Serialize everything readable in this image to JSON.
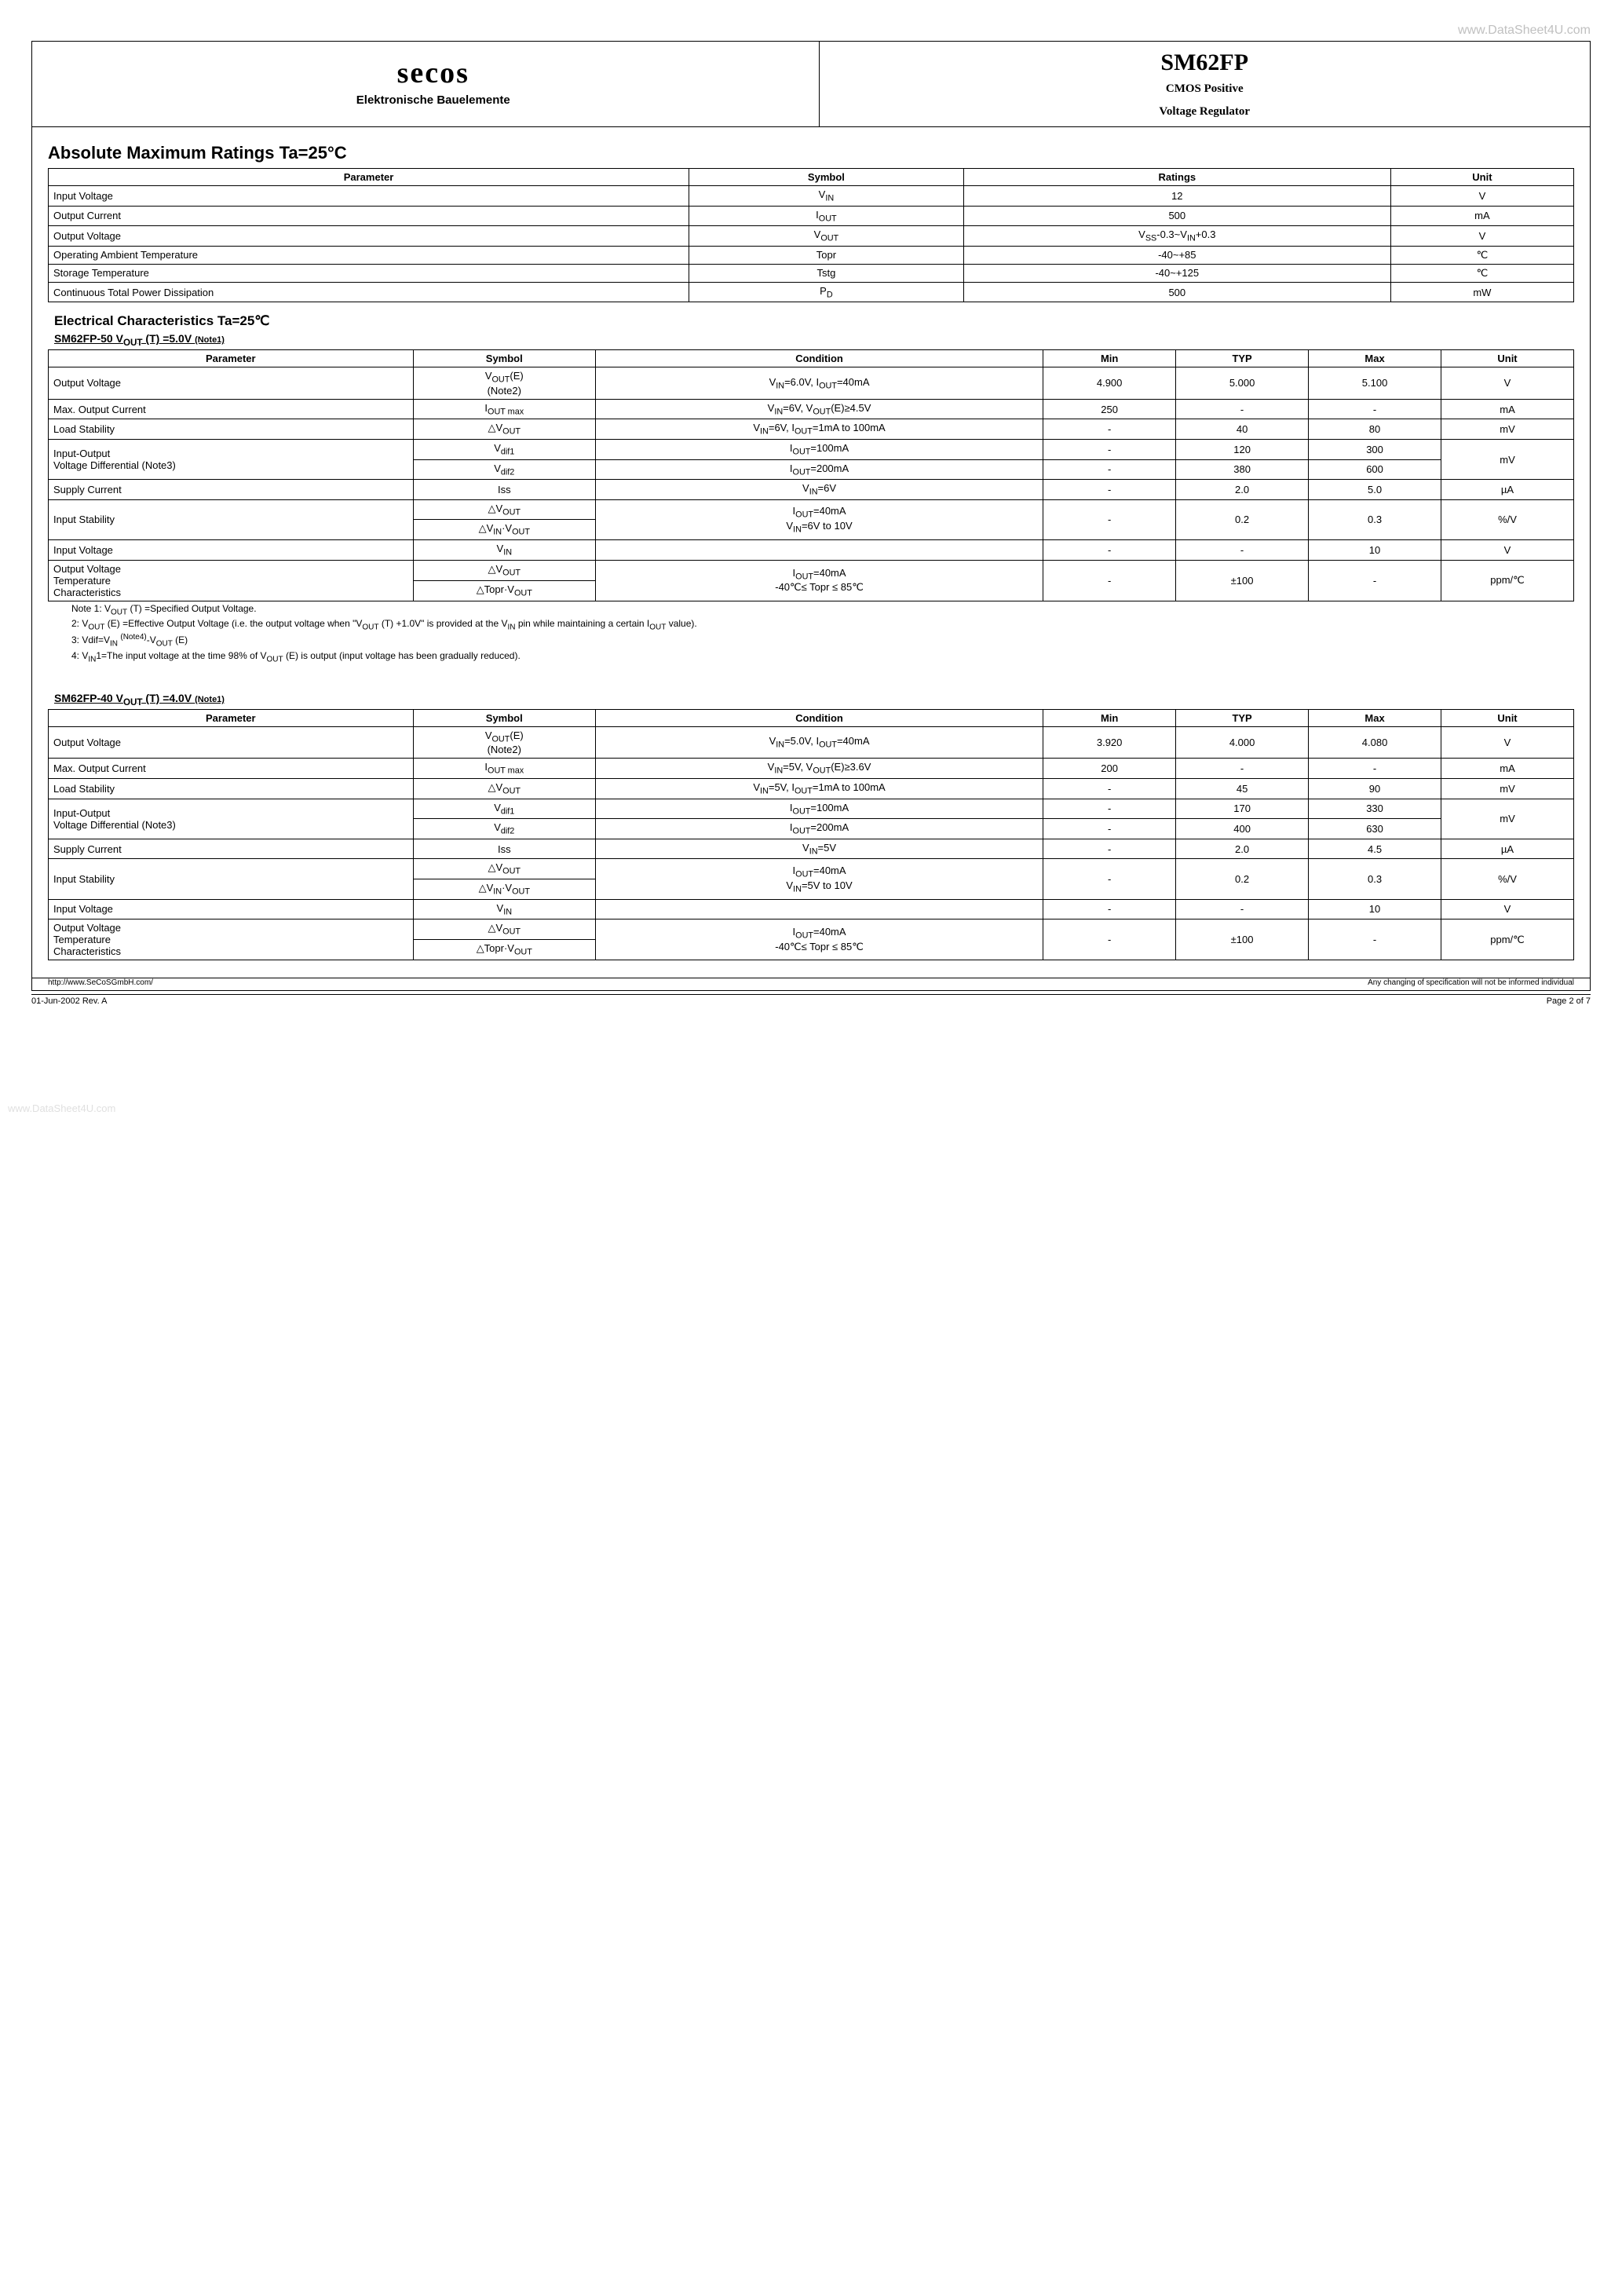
{
  "watermark_top": "www.DataSheet4U.com",
  "watermark_side": "www.DataSheet4U.com",
  "header": {
    "logo_text": "secos",
    "logo_sub": "Elektronische Bauelemente",
    "part_no": "SM62FP",
    "sub1": "CMOS Positive",
    "sub2": "Voltage Regulator"
  },
  "amr": {
    "title": "Absolute Maximum Ratings   Ta=25°C",
    "columns": [
      "Parameter",
      "Symbol",
      "Ratings",
      "Unit"
    ],
    "rows": [
      [
        "Input Voltage",
        "V<sub>IN</sub>",
        "12",
        "V"
      ],
      [
        "Output Current",
        "I<sub>OUT</sub>",
        "500",
        "mA"
      ],
      [
        "Output Voltage",
        "V<sub>OUT</sub>",
        "V<sub>SS</sub>-0.3~V<sub>IN</sub>+0.3",
        "V"
      ],
      [
        "Operating Ambient Temperature",
        "Topr",
        "-40~+85",
        "℃"
      ],
      [
        "Storage Temperature",
        "Tstg",
        "-40~+125",
        "℃"
      ],
      [
        "Continuous Total Power Dissipation",
        "P<sub>D</sub>",
        "500",
        "mW"
      ]
    ]
  },
  "ec": {
    "title": "Electrical Characteristics Ta=25℃",
    "columns": [
      "Parameter",
      "Symbol",
      "Condition",
      "Min",
      "TYP",
      "Max",
      "Unit"
    ],
    "variants": [
      {
        "name": "SM62FP-50 V<sub>OUT</sub> (T) =5.0V",
        "note": "(Note1)",
        "rows": [
          {
            "param": "Output Voltage",
            "symbol": "V<sub>OUT</sub>(E)<br>(Note2)",
            "cond": "V<sub>IN</sub>=6.0V, I<sub>OUT</sub>=40mA",
            "min": "4.900",
            "typ": "5.000",
            "max": "5.100",
            "unit": "V"
          },
          {
            "param": "Max. Output Current",
            "symbol": "I<sub>OUT max</sub>",
            "cond": "V<sub>IN</sub>=6V, V<sub>OUT</sub>(E)≥4.5V",
            "min": "250",
            "typ": "-",
            "max": "-",
            "unit": "mA"
          },
          {
            "param": "Load Stability",
            "symbol": "△V<sub>OUT</sub>",
            "cond": "V<sub>IN</sub>=6V, I<sub>OUT</sub>=1mA to 100mA",
            "min": "-",
            "typ": "40",
            "max": "80",
            "unit": "mV"
          },
          {
            "param": "Input-Output<br>Voltage Differential (Note3)",
            "symbol": "V<sub>dif1</sub>",
            "cond": "I<sub>OUT</sub>=100mA",
            "min": "-",
            "typ": "120",
            "max": "300",
            "unit": "mV",
            "rowspan_param": 2,
            "rowspan_unit": 2
          },
          {
            "param": "",
            "symbol": "V<sub>dif2</sub>",
            "cond": "I<sub>OUT</sub>=200mA",
            "min": "-",
            "typ": "380",
            "max": "600",
            "unit": ""
          },
          {
            "param": "Supply Current",
            "symbol": "Iss",
            "cond": "V<sub>IN</sub>=6V",
            "min": "-",
            "typ": "2.0",
            "max": "5.0",
            "unit": "µA"
          },
          {
            "param": "Input Stability",
            "symbol": "△V<sub>OUT</sub>",
            "cond": "I<sub>OUT</sub>=40mA<br>V<sub>IN</sub>=6V to 10V",
            "min": "-",
            "typ": "0.2",
            "max": "0.3",
            "unit": "%/V",
            "rowspan_param": 2,
            "rowspan_cond": 2,
            "rowspan_min": 2,
            "rowspan_typ": 2,
            "rowspan_max": 2,
            "rowspan_unit": 2
          },
          {
            "param": "",
            "symbol": "△V<sub>IN</sub>·V<sub>OUT</sub>",
            "cond": "",
            "min": "",
            "typ": "",
            "max": "",
            "unit": ""
          },
          {
            "param": "Input Voltage",
            "symbol": "V<sub>IN</sub>",
            "cond": "",
            "min": "-",
            "typ": "-",
            "max": "10",
            "unit": "V"
          },
          {
            "param": "Output Voltage<br>Temperature<br>Characteristics",
            "symbol": "△V<sub>OUT</sub>",
            "cond": "I<sub>OUT</sub>=40mA<br>-40℃≤ Topr ≤ 85℃",
            "min": "-",
            "typ": "±100",
            "max": "-",
            "unit": "ppm/℃",
            "rowspan_param": 2,
            "rowspan_cond": 2,
            "rowspan_min": 2,
            "rowspan_typ": 2,
            "rowspan_max": 2,
            "rowspan_unit": 2
          },
          {
            "param": "",
            "symbol": "△Topr·V<sub>OUT</sub>",
            "cond": "",
            "min": "",
            "typ": "",
            "max": "",
            "unit": ""
          }
        ]
      },
      {
        "name": "SM62FP-40 V<sub>OUT</sub> (T) =4.0V",
        "note": "(Note1)",
        "rows": [
          {
            "param": "Output Voltage",
            "symbol": "V<sub>OUT</sub>(E)<br>(Note2)",
            "cond": "V<sub>IN</sub>=5.0V, I<sub>OUT</sub>=40mA",
            "min": "3.920",
            "typ": "4.000",
            "max": "4.080",
            "unit": "V"
          },
          {
            "param": "Max. Output Current",
            "symbol": "I<sub>OUT max</sub>",
            "cond": "V<sub>IN</sub>=5V, V<sub>OUT</sub>(E)≥3.6V",
            "min": "200",
            "typ": "-",
            "max": "-",
            "unit": "mA"
          },
          {
            "param": "Load Stability",
            "symbol": "△V<sub>OUT</sub>",
            "cond": "V<sub>IN</sub>=5V, I<sub>OUT</sub>=1mA to 100mA",
            "min": "-",
            "typ": "45",
            "max": "90",
            "unit": "mV"
          },
          {
            "param": "Input-Output<br>Voltage Differential (Note3)",
            "symbol": "V<sub>dif1</sub>",
            "cond": "I<sub>OUT</sub>=100mA",
            "min": "-",
            "typ": "170",
            "max": "330",
            "unit": "mV",
            "rowspan_param": 2,
            "rowspan_unit": 2
          },
          {
            "param": "",
            "symbol": "V<sub>dif2</sub>",
            "cond": "I<sub>OUT</sub>=200mA",
            "min": "-",
            "typ": "400",
            "max": "630",
            "unit": ""
          },
          {
            "param": "Supply Current",
            "symbol": "Iss",
            "cond": "V<sub>IN</sub>=5V",
            "min": "-",
            "typ": "2.0",
            "max": "4.5",
            "unit": "µA"
          },
          {
            "param": "Input Stability",
            "symbol": "△V<sub>OUT</sub>",
            "cond": "I<sub>OUT</sub>=40mA<br>V<sub>IN</sub>=5V to 10V",
            "min": "-",
            "typ": "0.2",
            "max": "0.3",
            "unit": "%/V",
            "rowspan_param": 2,
            "rowspan_cond": 2,
            "rowspan_min": 2,
            "rowspan_typ": 2,
            "rowspan_max": 2,
            "rowspan_unit": 2
          },
          {
            "param": "",
            "symbol": "△V<sub>IN</sub>·V<sub>OUT</sub>",
            "cond": "",
            "min": "",
            "typ": "",
            "max": "",
            "unit": ""
          },
          {
            "param": "Input Voltage",
            "symbol": "V<sub>IN</sub>",
            "cond": "",
            "min": "-",
            "typ": "-",
            "max": "10",
            "unit": "V"
          },
          {
            "param": "Output Voltage<br>Temperature<br>Characteristics",
            "symbol": "△V<sub>OUT</sub>",
            "cond": "I<sub>OUT</sub>=40mA<br>-40℃≤ Topr ≤ 85℃",
            "min": "-",
            "typ": "±100",
            "max": "-",
            "unit": "ppm/℃",
            "rowspan_param": 2,
            "rowspan_cond": 2,
            "rowspan_min": 2,
            "rowspan_typ": 2,
            "rowspan_max": 2,
            "rowspan_unit": 2
          },
          {
            "param": "",
            "symbol": "△Topr·V<sub>OUT</sub>",
            "cond": "",
            "min": "",
            "typ": "",
            "max": "",
            "unit": ""
          }
        ]
      }
    ]
  },
  "notes": [
    "Note 1: V<sub>OUT</sub> (T) =Specified Output Voltage.",
    "2: V<sub>OUT</sub> (E) =Effective Output Voltage (i.e. the output voltage when \"V<sub>OUT</sub> (T) +1.0V\" is provided at the V<sub>IN</sub> pin while maintaining a certain I<sub>OUT</sub> value).",
    "3: Vdif=V<sub>IN</sub> <sup>(Note4)</sup>-V<sub>OUT</sub> (E)",
    "4: V<sub>IN</sub>1=The input voltage at the time 98% of V<sub>OUT</sub> (E) is output (input voltage has been gradually reduced)."
  ],
  "footer": {
    "url": "http://www.SeCoSGmbH.com/",
    "disclaimer": "Any changing of specification will not be informed individual",
    "date_rev": "01-Jun-2002  Rev. A",
    "page": "Page 2 of 7"
  }
}
